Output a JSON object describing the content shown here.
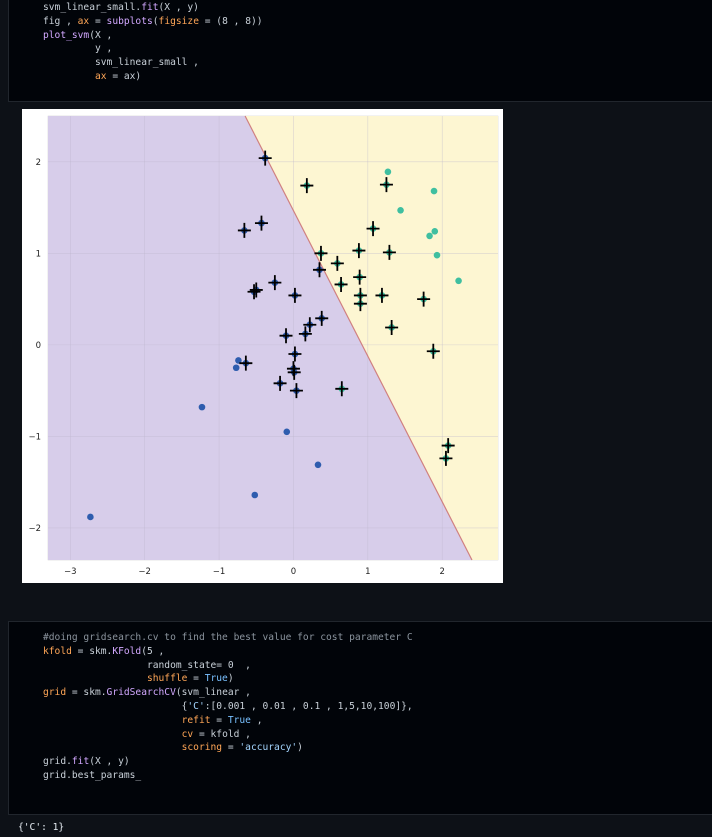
{
  "cell1": {
    "lines": [
      "svm_linear_small.fit(X , y)",
      "fig , ax = subplots(figsize = (8 , 8))",
      "plot_svm(X ,",
      "         y ,",
      "         svm_linear_small ,",
      "         ax = ax)"
    ]
  },
  "chart_data": {
    "type": "scatter",
    "xlim": [
      -3.3,
      2.75
    ],
    "ylim": [
      -2.35,
      2.5
    ],
    "xticks": [
      "−3",
      "−2",
      "−1",
      "0",
      "1",
      "2"
    ],
    "yticks": [
      "−2",
      "−1",
      "0",
      "1",
      "2"
    ],
    "xtick_values": [
      -3,
      -2,
      -1,
      0,
      1,
      2
    ],
    "ytick_values": [
      -2,
      -1,
      0,
      1,
      2
    ],
    "grid": true,
    "colors": {
      "region_class0": "#d7cdea",
      "region_class1": "#fdf6d2",
      "boundary": "#d08080",
      "class0_point": "#2e5cae",
      "class1_point": "#3fbfa0",
      "support_marker": "#000000",
      "grid": "#bdb6cc"
    },
    "boundary_line": [
      [
        -0.65,
        2.5
      ],
      [
        2.4,
        -2.35
      ]
    ],
    "class0_points": [
      [
        -0.38,
        2.04
      ],
      [
        -0.66,
        1.25
      ],
      [
        -0.43,
        1.33
      ],
      [
        -0.53,
        0.58
      ],
      [
        -0.5,
        0.6
      ],
      [
        -0.25,
        0.68
      ],
      [
        0.02,
        0.54
      ],
      [
        0.38,
        0.29
      ],
      [
        0.22,
        0.22
      ],
      [
        0.16,
        0.12
      ],
      [
        -0.1,
        0.1
      ],
      [
        0.02,
        -0.1
      ],
      [
        0.0,
        -0.26
      ],
      [
        0.01,
        -0.3
      ],
      [
        0.04,
        -0.5
      ],
      [
        -0.18,
        -0.42
      ],
      [
        -0.64,
        -0.2
      ],
      [
        -0.74,
        -0.17
      ],
      [
        -0.77,
        -0.25
      ],
      [
        -1.23,
        -0.68
      ],
      [
        -0.09,
        -0.95
      ],
      [
        0.33,
        -1.31
      ],
      [
        -0.52,
        -1.64
      ],
      [
        -2.73,
        -1.88
      ],
      [
        0.35,
        0.82
      ]
    ],
    "class1_points": [
      [
        0.18,
        1.74
      ],
      [
        1.25,
        1.75
      ],
      [
        1.27,
        1.89
      ],
      [
        1.89,
        1.68
      ],
      [
        1.44,
        1.47
      ],
      [
        1.07,
        1.27
      ],
      [
        1.9,
        1.24
      ],
      [
        1.83,
        1.19
      ],
      [
        1.93,
        0.98
      ],
      [
        2.22,
        0.7
      ],
      [
        0.37,
        1.0
      ],
      [
        0.88,
        1.03
      ],
      [
        1.29,
        1.01
      ],
      [
        0.59,
        0.89
      ],
      [
        0.89,
        0.74
      ],
      [
        0.64,
        0.66
      ],
      [
        0.9,
        0.54
      ],
      [
        1.19,
        0.54
      ],
      [
        1.75,
        0.5
      ],
      [
        0.9,
        0.45
      ],
      [
        1.32,
        0.19
      ],
      [
        1.88,
        -0.07
      ],
      [
        0.65,
        -0.48
      ],
      [
        2.08,
        -1.1
      ],
      [
        2.05,
        -1.24
      ]
    ],
    "support_vectors": [
      [
        -0.38,
        2.04
      ],
      [
        -0.66,
        1.25
      ],
      [
        -0.43,
        1.33
      ],
      [
        -0.53,
        0.58
      ],
      [
        -0.5,
        0.6
      ],
      [
        -0.25,
        0.68
      ],
      [
        0.02,
        0.54
      ],
      [
        0.38,
        0.29
      ],
      [
        0.22,
        0.22
      ],
      [
        0.16,
        0.12
      ],
      [
        -0.1,
        0.1
      ],
      [
        0.02,
        -0.1
      ],
      [
        0.0,
        -0.26
      ],
      [
        0.01,
        -0.3
      ],
      [
        0.04,
        -0.5
      ],
      [
        -0.18,
        -0.42
      ],
      [
        -0.64,
        -0.2
      ],
      [
        0.35,
        0.82
      ],
      [
        0.18,
        1.74
      ],
      [
        1.25,
        1.75
      ],
      [
        1.07,
        1.27
      ],
      [
        0.37,
        1.0
      ],
      [
        0.88,
        1.03
      ],
      [
        1.29,
        1.01
      ],
      [
        0.59,
        0.89
      ],
      [
        0.89,
        0.74
      ],
      [
        0.64,
        0.66
      ],
      [
        0.9,
        0.54
      ],
      [
        1.19,
        0.54
      ],
      [
        1.75,
        0.5
      ],
      [
        0.9,
        0.45
      ],
      [
        1.32,
        0.19
      ],
      [
        1.88,
        -0.07
      ],
      [
        0.65,
        -0.48
      ],
      [
        2.08,
        -1.1
      ],
      [
        2.05,
        -1.24
      ]
    ]
  },
  "cell2": {
    "lines": [
      "#doing gridsearch.cv to find the best value for cost parameter C",
      "kfold = skm.KFold(5 ,",
      "                  random_state= 0  ,",
      "                  shuffle = True)",
      "grid = skm.GridSearchCV(svm_linear ,",
      "                        {'C':[0.001 , 0.01 , 0.1 , 1,5,10,100]},",
      "                        refit = True ,",
      "                        cv = kfold ,",
      "                        scoring = 'accuracy')",
      "grid.fit(X , y)",
      "grid.best_params_"
    ]
  },
  "output": {
    "text": "{'C': 1}"
  }
}
